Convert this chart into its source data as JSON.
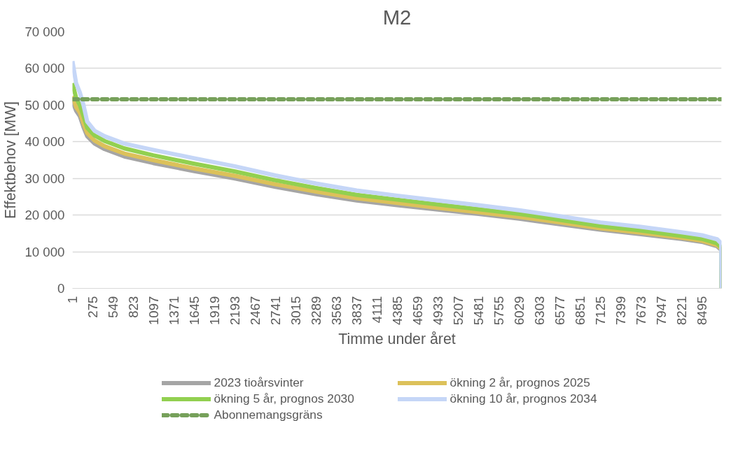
{
  "chart_data": {
    "type": "line",
    "title": "M2",
    "xlabel": "Timme under året",
    "ylabel": "Effektbehov [MW]",
    "x": [
      1,
      50,
      100,
      150,
      200,
      300,
      435,
      700,
      1090,
      1645,
      2193,
      2741,
      3289,
      3837,
      4385,
      4933,
      5481,
      6029,
      6577,
      7125,
      7673,
      8221,
      8495,
      8700,
      8755,
      8760
    ],
    "series": [
      {
        "name": "2023 tioårsvinter",
        "color": "#a5a5a5",
        "values": [
          51000,
          48500,
          47000,
          44000,
          41500,
          39500,
          38000,
          36000,
          34200,
          32000,
          30000,
          27700,
          25700,
          24000,
          22700,
          21500,
          20300,
          19000,
          17500,
          16000,
          14800,
          13500,
          12700,
          11500,
          10500,
          0
        ]
      },
      {
        "name": "ökning 2 år, prognos 2025",
        "color": "#dcc15a",
        "values": [
          52500,
          49500,
          48000,
          45000,
          42400,
          40300,
          38800,
          36800,
          35000,
          32700,
          30700,
          28400,
          26400,
          24600,
          23300,
          22000,
          20800,
          19500,
          18000,
          16400,
          15200,
          13800,
          13000,
          11800,
          10800,
          0
        ]
      },
      {
        "name": "ökning 5 år, prognos 2030",
        "color": "#92d050",
        "values": [
          56000,
          52000,
          50000,
          47000,
          43800,
          41700,
          40200,
          38200,
          36300,
          34000,
          31900,
          29500,
          27400,
          25500,
          24200,
          22900,
          21600,
          20300,
          18700,
          17000,
          15800,
          14300,
          13500,
          12300,
          11200,
          0
        ]
      },
      {
        "name": "ökning 10 år, prognos 2034",
        "color": "#c5d6f7",
        "values": [
          62000,
          56000,
          53500,
          50000,
          45500,
          43000,
          41500,
          39500,
          37800,
          35500,
          33300,
          30800,
          28600,
          26700,
          25300,
          24000,
          22700,
          21300,
          19700,
          18000,
          16800,
          15300,
          14500,
          13400,
          12300,
          0
        ]
      }
    ],
    "ref_lines": [
      {
        "axis": "y",
        "value": 51600,
        "label": "Abonnemangsgräns",
        "color": "#76a05a",
        "line_style": "dashed"
      }
    ],
    "xlim": [
      1,
      8760
    ],
    "xticks": [
      1,
      275,
      549,
      823,
      1097,
      1371,
      1645,
      1919,
      2193,
      2467,
      2741,
      3015,
      3289,
      3563,
      3837,
      4111,
      4385,
      4659,
      4933,
      5207,
      5481,
      5755,
      6029,
      6303,
      6577,
      6851,
      7125,
      7399,
      7673,
      7947,
      8221,
      8495
    ],
    "ylim": [
      0,
      70000
    ],
    "yticks": [
      {
        "value": 0,
        "label": "0"
      },
      {
        "value": 10000,
        "label": "10 000"
      },
      {
        "value": 20000,
        "label": "20 000"
      },
      {
        "value": 30000,
        "label": "30 000"
      },
      {
        "value": 40000,
        "label": "40 000"
      },
      {
        "value": 50000,
        "label": "50 000"
      },
      {
        "value": 60000,
        "label": "60 000"
      },
      {
        "value": 70000,
        "label": "70 000"
      }
    ],
    "grid": "y",
    "legend": "bottom",
    "line_style": "solid",
    "marker": "none"
  }
}
